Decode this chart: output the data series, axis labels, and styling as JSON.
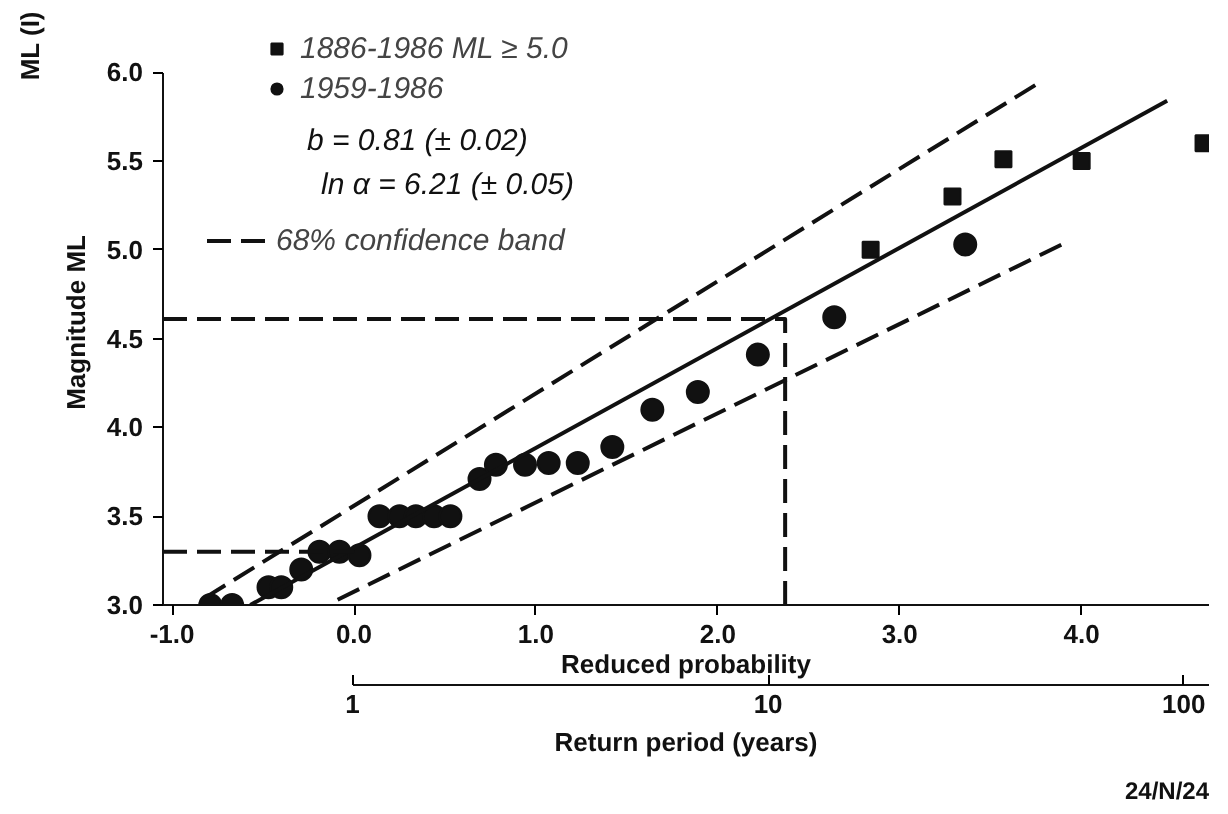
{
  "chart_data": {
    "type": "scatter",
    "xlabel": "Reduced probability",
    "x2label": "Return period (years)",
    "ylabel": "Magnitude     ML",
    "xlim": [
      -1.05,
      4.7
    ],
    "xticks": [
      {
        "value": -1,
        "label": "-1.0"
      },
      {
        "value": 0,
        "label": "0.0"
      },
      {
        "value": 1,
        "label": "1.0"
      },
      {
        "value": 2,
        "label": "2.0"
      },
      {
        "value": 3,
        "label": "3.0"
      },
      {
        "value": 4,
        "label": "4.0"
      }
    ],
    "x2lim": [
      0.35,
      115
    ],
    "x2ticks": [
      1,
      10,
      100
    ],
    "log": "x2",
    "ylim": [
      3.0,
      6.0
    ],
    "yticks": [
      {
        "value": 3,
        "label": "3.0"
      },
      {
        "value": 3.5,
        "label": "3.5"
      },
      {
        "value": 4,
        "label": "4.0"
      },
      {
        "value": 4.5,
        "label": "4.5"
      },
      {
        "value": 5,
        "label": "5.0"
      },
      {
        "value": 5.5,
        "label": "5.5"
      },
      {
        "value": 6,
        "label": "6.0"
      }
    ],
    "grid": false,
    "legend": "top left",
    "series": [
      {
        "name": "1886-1986 ML ≥ 5.0",
        "marker": "square",
        "color": "#111111",
        "x": [
          2.84,
          3.29,
          3.57,
          4.0,
          4.67
        ],
        "values": [
          5.0,
          5.3,
          5.51,
          5.5,
          5.6
        ]
      },
      {
        "name": "1959-1986",
        "marker": "circle",
        "color": "#111111",
        "x": [
          -0.79,
          -0.67,
          -0.47,
          -0.4,
          -0.29,
          -0.19,
          -0.08,
          0.03,
          0.14,
          0.25,
          0.34,
          0.44,
          0.53,
          0.69,
          0.78,
          0.94,
          1.07,
          1.23,
          1.42,
          1.64,
          1.89,
          2.22,
          2.64,
          3.36
        ],
        "values": [
          3.0,
          3.0,
          3.1,
          3.1,
          3.2,
          3.3,
          3.3,
          3.28,
          3.5,
          3.5,
          3.5,
          3.5,
          3.5,
          3.71,
          3.79,
          3.79,
          3.8,
          3.8,
          3.89,
          4.1,
          4.2,
          4.41,
          4.62,
          5.03
        ]
      },
      {
        "type": "line",
        "line_style": "solid",
        "color": "#111111",
        "x": [
          -0.57,
          4.47
        ],
        "values": [
          3.0,
          5.84
        ]
      },
      {
        "name": "68% confidence band",
        "type": "line",
        "line_style": "dashed",
        "color": "#111111",
        "x": [
          -0.82,
          3.78
        ],
        "values": [
          3.04,
          5.95
        ]
      },
      {
        "type": "line",
        "line_style": "dashed",
        "color": "#111111",
        "x": [
          -0.09,
          3.93
        ],
        "values": [
          3.03,
          5.05
        ]
      },
      {
        "type": "line",
        "line_style": "dashed",
        "color": "#111111",
        "x": [
          -1.05,
          2.37,
          2.37
        ],
        "values": [
          4.61,
          4.61,
          3.0
        ]
      },
      {
        "type": "line",
        "line_style": "dashed",
        "color": "#111111",
        "x": [
          -1.05,
          0.0
        ],
        "values": [
          3.3,
          3.3
        ]
      }
    ],
    "annotations": [
      "b = 0.81 (± 0.02)",
      "ln α = 6.21 (± 0.05)",
      "ML (I)",
      "24/N/24"
    ]
  }
}
